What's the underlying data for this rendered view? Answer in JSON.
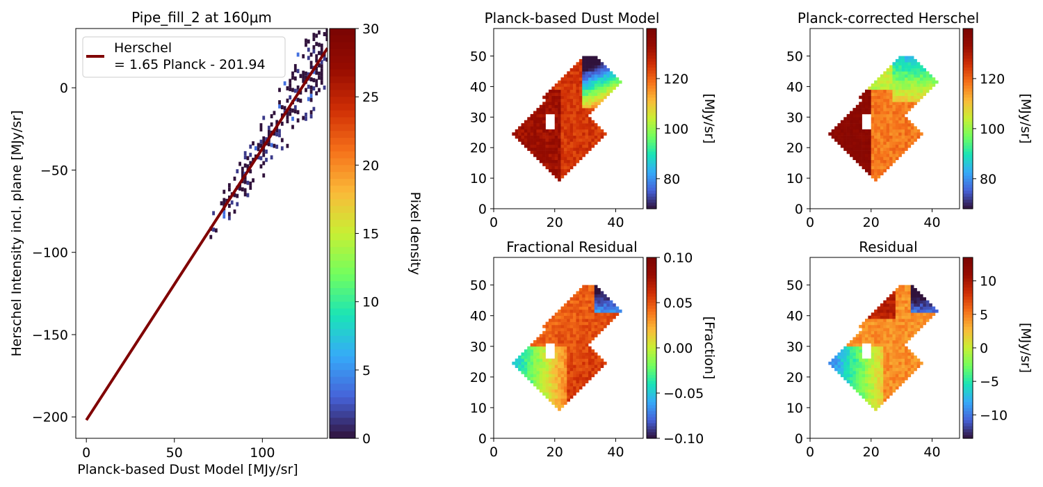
{
  "colormap": "turbo",
  "chart_data": [
    {
      "type": "scatter",
      "subtype": "2d-density-histogram",
      "title": "Pipe_fill_2 at 160μm",
      "xlabel": "Planck-based Dust Model [MJy/sr]",
      "ylabel": "Herschel Intensity incl. plane [MJy/sr]",
      "xlim": [
        -6,
        137
      ],
      "ylim": [
        -213,
        36
      ],
      "xticks": [
        0,
        50,
        100
      ],
      "yticks": [
        0,
        -50,
        -100,
        -150,
        -200
      ],
      "density_range": [
        70,
        137
      ],
      "colorbar": {
        "label": "Pixel density",
        "range": [
          0,
          30
        ],
        "ticks": [
          0,
          5,
          10,
          15,
          20,
          25,
          30
        ]
      },
      "fit_line": {
        "color": "#800000",
        "slope": 1.65,
        "intercept": -201.94,
        "x_range": [
          0,
          137
        ],
        "legend_label_line1": "Herschel",
        "legend_label_line2": "= 1.65 Planck - 201.94"
      },
      "legend_position": "upper-left"
    },
    {
      "type": "heatmap",
      "title": "Planck-based Dust Model",
      "xlim": [
        0,
        49
      ],
      "ylim": [
        0,
        59
      ],
      "xticks": [
        0,
        20,
        40
      ],
      "yticks": [
        0,
        10,
        20,
        30,
        40,
        50
      ],
      "colorbar": {
        "label": "[MJy/sr]",
        "range": [
          68,
          140
        ],
        "ticks": [
          80,
          100,
          120
        ]
      },
      "field": "model"
    },
    {
      "type": "heatmap",
      "title": "Planck-corrected Herschel",
      "xlim": [
        0,
        49
      ],
      "ylim": [
        0,
        59
      ],
      "xticks": [
        0,
        20,
        40
      ],
      "yticks": [
        0,
        10,
        20,
        30,
        40,
        50
      ],
      "colorbar": {
        "label": "[MJy/sr]",
        "range": [
          68,
          140
        ],
        "ticks": [
          80,
          100,
          120
        ]
      },
      "field": "herschel"
    },
    {
      "type": "heatmap",
      "title": "Fractional Residual",
      "xlim": [
        0,
        49
      ],
      "ylim": [
        0,
        59
      ],
      "xticks": [
        0,
        20,
        40
      ],
      "yticks": [
        0,
        10,
        20,
        30,
        40,
        50
      ],
      "colorbar": {
        "label": "[Fraction]",
        "range": [
          -0.1,
          0.1
        ],
        "ticks": [
          "0.10",
          "0.05",
          "0.00",
          "−0.05",
          "−0.10"
        ]
      },
      "field": "frac"
    },
    {
      "type": "heatmap",
      "title": "Residual",
      "xlim": [
        0,
        49
      ],
      "ylim": [
        0,
        59
      ],
      "xticks": [
        0,
        20,
        40
      ],
      "yticks": [
        0,
        10,
        20,
        30,
        40,
        50
      ],
      "colorbar": {
        "label": "[MJy/sr]",
        "range": [
          -13.5,
          13.5
        ],
        "ticks": [
          "10",
          "5",
          "0",
          "−5",
          "−10"
        ]
      },
      "field": "resid"
    }
  ]
}
